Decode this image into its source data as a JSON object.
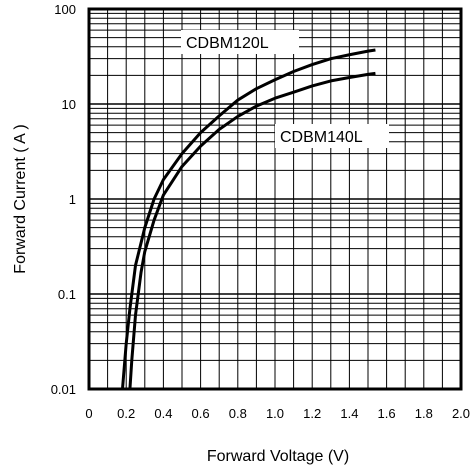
{
  "chart_data": {
    "type": "line",
    "title": "",
    "xlabel": "Forward Voltage (V)",
    "ylabel": "Forward Current ( A )",
    "xlim": [
      0,
      2.0
    ],
    "ylim": [
      0.01,
      100
    ],
    "y_scale": "log",
    "grid": true,
    "x_ticks": [
      "0",
      "0.2",
      "0.4",
      "0.6",
      "0.8",
      "1.0",
      "1.2",
      "1.4",
      "1.6",
      "1.8",
      "2.0"
    ],
    "y_ticks": [
      "0.01",
      "0.1",
      "1",
      "10",
      "100"
    ],
    "series": [
      {
        "name": "CDBM120L",
        "x": [
          0.18,
          0.2,
          0.22,
          0.25,
          0.3,
          0.35,
          0.4,
          0.5,
          0.6,
          0.7,
          0.8,
          0.9,
          1.0,
          1.1,
          1.2,
          1.3,
          1.4,
          1.5,
          1.54
        ],
        "y": [
          0.01,
          0.03,
          0.07,
          0.2,
          0.5,
          1.0,
          1.6,
          3.0,
          5.0,
          7.5,
          11.0,
          14.5,
          18.0,
          22.0,
          26.0,
          30.0,
          33.0,
          36.0,
          37.0
        ]
      },
      {
        "name": "CDBM140L",
        "x": [
          0.22,
          0.23,
          0.25,
          0.28,
          0.3,
          0.35,
          0.4,
          0.5,
          0.6,
          0.7,
          0.8,
          0.9,
          1.0,
          1.1,
          1.2,
          1.3,
          1.4,
          1.5,
          1.54
        ],
        "y": [
          0.01,
          0.02,
          0.06,
          0.17,
          0.28,
          0.6,
          1.1,
          2.2,
          3.6,
          5.4,
          7.4,
          9.5,
          11.5,
          13.3,
          15.5,
          17.5,
          19.0,
          20.5,
          21.0
        ]
      }
    ]
  }
}
